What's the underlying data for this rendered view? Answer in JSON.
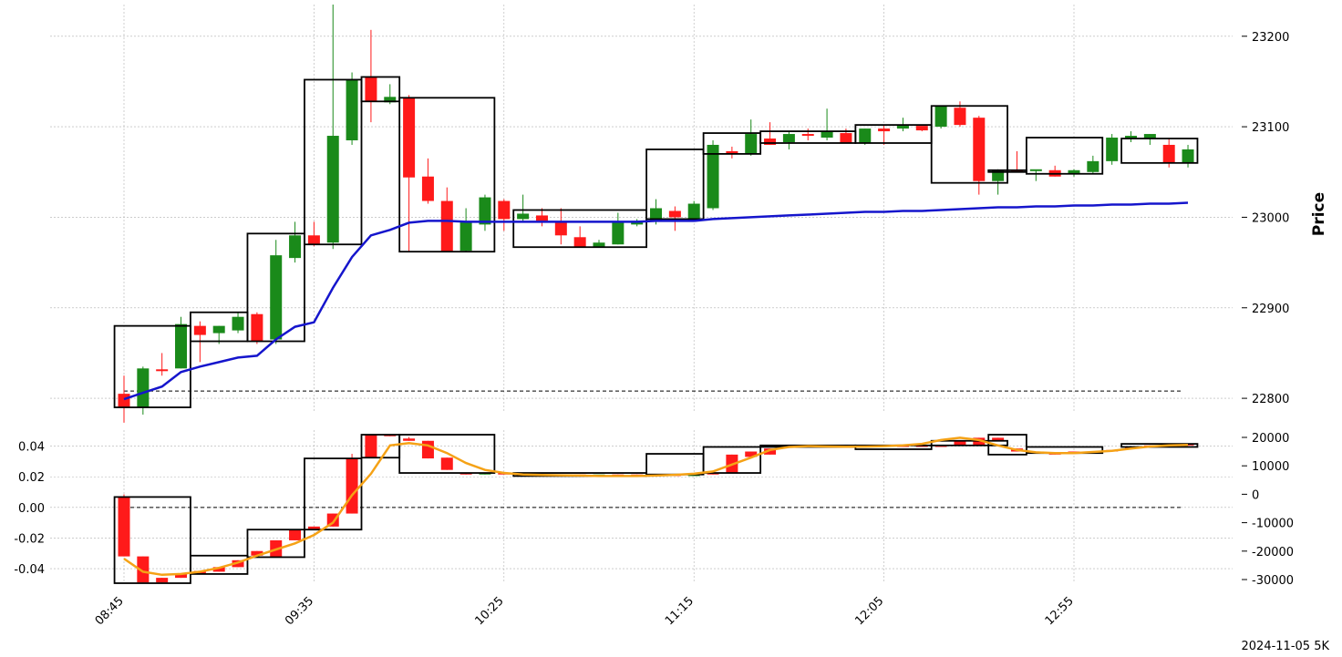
{
  "footer_label": "2024-11-05 5K",
  "colors": {
    "up": "#1a8a1a",
    "down": "#ff1a1a",
    "vwap": "#1515cc",
    "osc": "#f5a216",
    "box": "#000000",
    "grid": "#b0b0b0"
  },
  "chart_data": {
    "type": "candlestick",
    "x_ticks": [
      "08:45",
      "09:35",
      "10:25",
      "11:15",
      "12:05",
      "12:55"
    ],
    "price_panel": {
      "ylabel": "Price",
      "ylim": [
        22785,
        23235
      ],
      "yticks": [
        22800,
        22900,
        23000,
        23100,
        23200
      ],
      "dashed_ref": 22808,
      "candles": [
        [
          22805,
          22825,
          22773,
          22790
        ],
        [
          22790,
          22835,
          22782,
          22833
        ],
        [
          22832,
          22850,
          22825,
          22830
        ],
        [
          22833,
          22890,
          22833,
          22882
        ],
        [
          22880,
          22885,
          22840,
          22870
        ],
        [
          22872,
          22880,
          22860,
          22880
        ],
        [
          22875,
          22895,
          22872,
          22890
        ],
        [
          22893,
          22895,
          22860,
          22863
        ],
        [
          22865,
          22975,
          22860,
          22958
        ],
        [
          22955,
          22995,
          22950,
          22980
        ],
        [
          22980,
          22995,
          22968,
          22970
        ],
        [
          22972,
          23235,
          22965,
          23090
        ],
        [
          23085,
          23160,
          23080,
          23152
        ],
        [
          23155,
          23207,
          23105,
          23128
        ],
        [
          23127,
          23147,
          23125,
          23133
        ],
        [
          23132,
          23135,
          22962,
          23044
        ],
        [
          23045,
          23065,
          23015,
          23018
        ],
        [
          23018,
          23033,
          22962,
          22962
        ],
        [
          22963,
          23010,
          22962,
          22995
        ],
        [
          22992,
          23025,
          22985,
          23022
        ],
        [
          23018,
          23020,
          22985,
          22998
        ],
        [
          22998,
          23025,
          22995,
          23004
        ],
        [
          23002,
          23010,
          22990,
          22996
        ],
        [
          22995,
          23010,
          22970,
          22980
        ],
        [
          22978,
          22990,
          22970,
          22967
        ],
        [
          22967,
          22975,
          22967,
          22972
        ],
        [
          22970,
          23005,
          22970,
          22995
        ],
        [
          22992,
          22998,
          22990,
          22996
        ],
        [
          22995,
          23020,
          22992,
          23010
        ],
        [
          23007,
          23012,
          22985,
          23000
        ],
        [
          22997,
          23018,
          22995,
          23015
        ],
        [
          23010,
          23085,
          23008,
          23080
        ],
        [
          23073,
          23078,
          23065,
          23070
        ],
        [
          23070,
          23108,
          23068,
          23092
        ],
        [
          23087,
          23105,
          23080,
          23080
        ],
        [
          23083,
          23095,
          23075,
          23092
        ],
        [
          23092,
          23098,
          23085,
          23090
        ],
        [
          23088,
          23120,
          23085,
          23095
        ],
        [
          23093,
          23098,
          23082,
          23082
        ],
        [
          23082,
          23098,
          23080,
          23098
        ],
        [
          23098,
          23102,
          23080,
          23095
        ],
        [
          23098,
          23110,
          23095,
          23102
        ],
        [
          23101,
          23097,
          23095,
          23096
        ],
        [
          23100,
          23123,
          23098,
          23123
        ],
        [
          23121,
          23128,
          23100,
          23102
        ],
        [
          23110,
          23112,
          23025,
          23040
        ],
        [
          23040,
          23053,
          23025,
          23052
        ],
        [
          23052,
          23073,
          23050,
          23050
        ],
        [
          23051,
          23052,
          23040,
          23053
        ],
        [
          23052,
          23057,
          23045,
          23045
        ],
        [
          23048,
          23053,
          23045,
          23052
        ],
        [
          23050,
          23068,
          23048,
          23062
        ],
        [
          23062,
          23092,
          23058,
          23088
        ],
        [
          23087,
          23095,
          23083,
          23090
        ],
        [
          23087,
          23092,
          23080,
          23092
        ],
        [
          23080,
          23087,
          23055,
          23060
        ],
        [
          23060,
          23080,
          23055,
          23075
        ]
      ],
      "vwap": [
        22799,
        22806,
        22813,
        22829,
        22835,
        22840,
        22845,
        22847,
        22865,
        22879,
        22884,
        22922,
        22956,
        22980,
        22986,
        22994,
        22996,
        22996,
        22995,
        22995,
        22995,
        22995,
        22995,
        22995,
        22995,
        22995,
        22995,
        22995,
        22996,
        22996,
        22996,
        22998,
        22999,
        23000,
        23001,
        23002,
        23003,
        23004,
        23005,
        23006,
        23006,
        23007,
        23007,
        23008,
        23009,
        23010,
        23011,
        23011,
        23012,
        23012,
        23013,
        23013,
        23014,
        23014,
        23015,
        23015,
        23016
      ],
      "boxes": [
        [
          0,
          3,
          22790,
          22880
        ],
        [
          4,
          6,
          22863,
          22895
        ],
        [
          7,
          9,
          22863,
          22982
        ],
        [
          10,
          12,
          22970,
          23152
        ],
        [
          13,
          14,
          23128,
          23155
        ],
        [
          15,
          19,
          22962,
          23132
        ],
        [
          21,
          27,
          22967,
          23008
        ],
        [
          28,
          30,
          22998,
          23075
        ],
        [
          31,
          33,
          23070,
          23093
        ],
        [
          34,
          38,
          23082,
          23095
        ],
        [
          39,
          42,
          23082,
          23102
        ],
        [
          43,
          46,
          23038,
          23123
        ],
        [
          46,
          47,
          23050,
          23052
        ],
        [
          48,
          51,
          23048,
          23088
        ],
        [
          53,
          56,
          23060,
          23087
        ]
      ]
    },
    "osc_panel": {
      "ylim_left": [
        -0.0495,
        0.0505
      ],
      "yticks_left": [
        -0.04,
        -0.02,
        0.0,
        0.02,
        0.04
      ],
      "yticks_right": [
        20000,
        10000,
        0,
        -10000,
        -20000,
        -30000
      ],
      "dashed_ref": 0,
      "candles": [
        [
          0.0068,
          0.0085,
          -0.032,
          -0.032
        ],
        [
          -0.032,
          -0.032,
          -0.049,
          -0.049
        ],
        [
          -0.046,
          -0.046,
          -0.049,
          -0.049
        ],
        [
          -0.0435,
          -0.0435,
          -0.046,
          -0.046
        ],
        [
          -0.0415,
          -0.0415,
          -0.0435,
          -0.0435
        ],
        [
          -0.039,
          -0.039,
          -0.042,
          -0.042
        ],
        [
          -0.0345,
          -0.0345,
          -0.039,
          -0.039
        ],
        [
          -0.0285,
          -0.0285,
          -0.0315,
          -0.0315
        ],
        [
          -0.0215,
          -0.0215,
          -0.0325,
          -0.0325
        ],
        [
          -0.0145,
          -0.0145,
          -0.0215,
          -0.0215
        ],
        [
          -0.0125,
          -0.0125,
          -0.0145,
          -0.0145
        ],
        [
          -0.004,
          -0.004,
          -0.0125,
          -0.0125
        ],
        [
          0.032,
          0.035,
          -0.004,
          -0.004
        ],
        [
          0.0475,
          0.0475,
          0.0325,
          0.0325
        ],
        [
          0.0475,
          0.0475,
          0.0465,
          0.0465
        ],
        [
          0.045,
          0.046,
          0.0435,
          0.0435
        ],
        [
          0.0435,
          0.0435,
          0.032,
          0.032
        ],
        [
          0.0325,
          0.0325,
          0.0245,
          0.0245
        ],
        [
          0.0225,
          0.0225,
          0.0215,
          0.0215
        ],
        [
          0.0215,
          0.0225,
          0.0215,
          0.0225
        ],
        [
          0.0225,
          0.0225,
          0.0215,
          0.0215
        ],
        [
          0.0215,
          0.0215,
          0.021,
          0.021
        ],
        [
          0.0215,
          0.0215,
          0.0205,
          0.0205
        ],
        [
          0.0215,
          0.0215,
          0.0205,
          0.0205
        ],
        [
          0.0215,
          0.0215,
          0.0205,
          0.0205
        ],
        [
          0.0205,
          0.0205,
          0.0205,
          0.0215
        ],
        [
          0.0215,
          0.0215,
          0.0205,
          0.0205
        ],
        [
          0.0215,
          0.0215,
          0.0205,
          0.0205
        ],
        [
          0.0215,
          0.0215,
          0.0205,
          0.0205
        ],
        [
          0.0215,
          0.0215,
          0.0205,
          0.0205
        ],
        [
          0.0205,
          0.0215,
          0.0205,
          0.0215
        ],
        [
          0.0225,
          0.0225,
          0.0215,
          0.0215
        ],
        [
          0.0345,
          0.0345,
          0.0225,
          0.0225
        ],
        [
          0.0365,
          0.0365,
          0.033,
          0.033
        ],
        [
          0.0385,
          0.0385,
          0.0345,
          0.0345
        ],
        [
          0.0405,
          0.0405,
          0.0395,
          0.0395
        ],
        [
          0.0405,
          0.0405,
          0.0395,
          0.0395
        ],
        [
          0.0405,
          0.0405,
          0.0395,
          0.0395
        ],
        [
          0.0405,
          0.0405,
          0.0395,
          0.0395
        ],
        [
          0.0405,
          0.0405,
          0.0395,
          0.0395
        ],
        [
          0.0405,
          0.0405,
          0.0395,
          0.0395
        ],
        [
          0.0405,
          0.0405,
          0.0395,
          0.0395
        ],
        [
          0.0405,
          0.0405,
          0.0395,
          0.0395
        ],
        [
          0.0405,
          0.0405,
          0.0395,
          0.0395
        ],
        [
          0.0435,
          0.0435,
          0.0405,
          0.0405
        ],
        [
          0.0455,
          0.0455,
          0.0405,
          0.0405
        ],
        [
          0.0455,
          0.0455,
          0.0435,
          0.0435
        ],
        [
          0.0385,
          0.0385,
          0.0365,
          0.0365
        ],
        [
          0.0365,
          0.0365,
          0.0355,
          0.0355
        ],
        [
          0.0355,
          0.0355,
          0.0345,
          0.0345
        ],
        [
          0.0365,
          0.0365,
          0.0355,
          0.0355
        ],
        [
          0.0365,
          0.0365,
          0.0355,
          0.0355
        ],
        [
          0.0375,
          0.0375,
          0.0365,
          0.0365
        ],
        [
          0.0395,
          0.0395,
          0.0385,
          0.0385
        ],
        [
          0.0405,
          0.0405,
          0.0395,
          0.0395
        ],
        [
          0.0415,
          0.0415,
          0.0405,
          0.0405
        ],
        [
          0.0415,
          0.0415,
          0.0405,
          0.0405
        ]
      ],
      "line": [
        -0.0335,
        -0.042,
        -0.044,
        -0.0435,
        -0.042,
        -0.0395,
        -0.036,
        -0.0315,
        -0.0275,
        -0.0235,
        -0.018,
        -0.01,
        0.008,
        0.022,
        0.0405,
        0.042,
        0.0405,
        0.0355,
        0.029,
        0.0245,
        0.0225,
        0.0215,
        0.0212,
        0.021,
        0.0208,
        0.0205,
        0.0205,
        0.0205,
        0.0208,
        0.0213,
        0.022,
        0.0235,
        0.028,
        0.0325,
        0.0375,
        0.0395,
        0.04,
        0.0398,
        0.0396,
        0.0397,
        0.04,
        0.0405,
        0.0415,
        0.044,
        0.0455,
        0.044,
        0.0405,
        0.0375,
        0.036,
        0.0355,
        0.0355,
        0.0362,
        0.037,
        0.0385,
        0.0398,
        0.0405,
        0.0408
      ],
      "boxes": [
        [
          0,
          3,
          -0.0495,
          0.0068
        ],
        [
          4,
          6,
          -0.0435,
          -0.0315
        ],
        [
          7,
          9,
          -0.0325,
          -0.0145
        ],
        [
          10,
          12,
          -0.0145,
          0.032
        ],
        [
          13,
          14,
          0.0325,
          0.0475
        ],
        [
          15,
          19,
          0.0225,
          0.0475
        ],
        [
          21,
          27,
          0.0205,
          0.0225
        ],
        [
          28,
          30,
          0.0215,
          0.035
        ],
        [
          31,
          33,
          0.0225,
          0.0395
        ],
        [
          34,
          38,
          0.0395,
          0.0405
        ],
        [
          39,
          42,
          0.038,
          0.0405
        ],
        [
          43,
          46,
          0.0405,
          0.0435
        ],
        [
          46,
          47,
          0.0345,
          0.0475
        ],
        [
          48,
          51,
          0.0355,
          0.0395
        ],
        [
          53,
          56,
          0.0395,
          0.0415
        ]
      ]
    }
  }
}
